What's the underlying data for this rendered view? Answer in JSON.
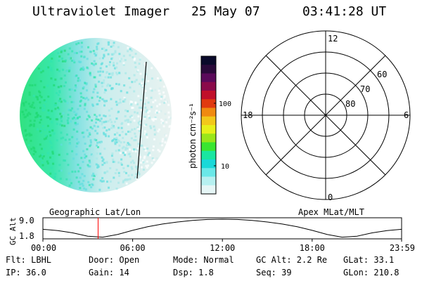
{
  "header": {
    "title": "Ultraviolet Imager",
    "date": "25 May 07",
    "time": "03:41:28 UT"
  },
  "colorbar": {
    "label": "photon cm⁻²s⁻¹",
    "ticks": [
      "100",
      "10"
    ],
    "colors": [
      "#0a0a2a",
      "#2a0a3a",
      "#5a0a5a",
      "#8a0a4a",
      "#c0102a",
      "#e03a10",
      "#f08a10",
      "#f2c81a",
      "#e6f01a",
      "#9ae61a",
      "#3ae630",
      "#1ae6a0",
      "#1ad8d8",
      "#6ae8e8",
      "#b6f0f0",
      "#e6f6f6"
    ]
  },
  "polar": {
    "mlt_labels": [
      "12",
      "18",
      "6",
      "0"
    ],
    "lat_labels": [
      "60",
      "70",
      "80"
    ]
  },
  "chart_data": {
    "type": "line",
    "title": "",
    "left_label": "Geographic Lat/Lon",
    "right_label": "Apex MLat/MLT",
    "ylabel": "GC Alt",
    "yticks": [
      "9.0",
      "1.8"
    ],
    "ylim": [
      1.8,
      9.0
    ],
    "xticks": [
      "00:00",
      "06:00",
      "12:00",
      "18:00",
      "23:59"
    ],
    "x_hours": [
      0,
      1,
      2,
      3,
      4,
      5,
      6,
      7,
      8,
      9,
      10,
      11,
      12,
      13,
      14,
      15,
      16,
      17,
      18,
      19,
      20,
      21,
      22,
      23,
      23.98
    ],
    "series": [
      {
        "values": [
          5.0,
          4.5,
          3.6,
          2.3,
          1.9,
          3.0,
          4.6,
          6.0,
          7.1,
          7.9,
          8.5,
          8.9,
          9.0,
          8.9,
          8.5,
          7.9,
          7.1,
          6.0,
          4.6,
          3.0,
          1.9,
          2.3,
          3.6,
          4.5,
          5.0
        ]
      }
    ],
    "current_time_hours": 3.69,
    "marker_color": "#ff0000"
  },
  "info": {
    "flt": "Flt: LBHL",
    "ip": "IP: 36.0",
    "door": "Door: Open",
    "gain": "Gain: 14",
    "mode": "Mode: Normal",
    "dsp": "Dsp:   1.8",
    "gc_alt": "GC Alt: 2.2 Re",
    "seq": "Seq: 39",
    "glat": "GLat:  33.1",
    "glon": "GLon: 210.8"
  }
}
